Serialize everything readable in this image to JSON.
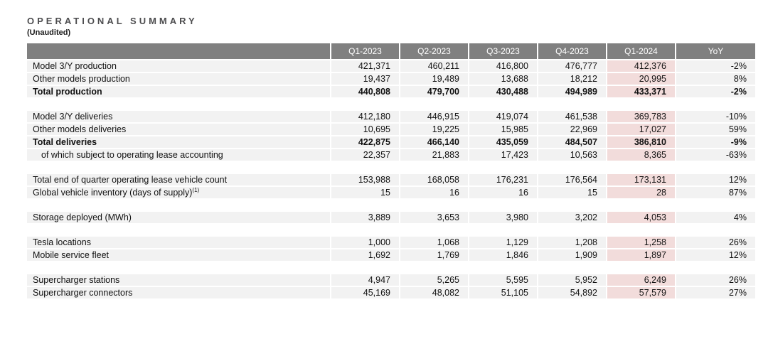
{
  "header": {
    "title": "OPERATIONAL SUMMARY",
    "subtitle": "(Unaudited)"
  },
  "colors": {
    "header_bg": "#808080",
    "header_text": "#ffffff",
    "row_bg": "#f2f2f2",
    "highlight_bg": "#f2dcdb",
    "title_color": "#4d4d4f"
  },
  "table": {
    "columns": [
      "",
      "Q1-2023",
      "Q2-2023",
      "Q3-2023",
      "Q4-2023",
      "Q1-2024",
      "YoY"
    ],
    "highlight_col_index": 5,
    "sections": [
      {
        "rows": [
          {
            "label": "Model 3/Y production",
            "bold": false,
            "indent": false,
            "values": [
              "421,371",
              "460,211",
              "416,800",
              "476,777",
              "412,376",
              "-2%"
            ]
          },
          {
            "label": "Other models production",
            "bold": false,
            "indent": false,
            "values": [
              "19,437",
              "19,489",
              "13,688",
              "18,212",
              "20,995",
              "8%"
            ]
          },
          {
            "label": "Total production",
            "bold": true,
            "indent": false,
            "values": [
              "440,808",
              "479,700",
              "430,488",
              "494,989",
              "433,371",
              "-2%"
            ]
          }
        ]
      },
      {
        "rows": [
          {
            "label": "Model 3/Y deliveries",
            "bold": false,
            "indent": false,
            "values": [
              "412,180",
              "446,915",
              "419,074",
              "461,538",
              "369,783",
              "-10%"
            ]
          },
          {
            "label": "Other models deliveries",
            "bold": false,
            "indent": false,
            "values": [
              "10,695",
              "19,225",
              "15,985",
              "22,969",
              "17,027",
              "59%"
            ]
          },
          {
            "label": "Total deliveries",
            "bold": true,
            "indent": false,
            "values": [
              "422,875",
              "466,140",
              "435,059",
              "484,507",
              "386,810",
              "-9%"
            ]
          },
          {
            "label": "of which subject to operating lease accounting",
            "bold": false,
            "indent": true,
            "values": [
              "22,357",
              "21,883",
              "17,423",
              "10,563",
              "8,365",
              "-63%"
            ]
          }
        ]
      },
      {
        "rows": [
          {
            "label": "Total end of quarter operating lease vehicle count",
            "bold": false,
            "indent": false,
            "values": [
              "153,988",
              "168,058",
              "176,231",
              "176,564",
              "173,131",
              "12%"
            ]
          },
          {
            "label": "Global vehicle inventory (days of supply)",
            "superscript": "(1)",
            "bold": false,
            "indent": false,
            "values": [
              "15",
              "16",
              "16",
              "15",
              "28",
              "87%"
            ]
          }
        ]
      },
      {
        "rows": [
          {
            "label": "Storage deployed (MWh)",
            "bold": false,
            "indent": false,
            "values": [
              "3,889",
              "3,653",
              "3,980",
              "3,202",
              "4,053",
              "4%"
            ]
          }
        ]
      },
      {
        "rows": [
          {
            "label": "Tesla locations",
            "bold": false,
            "indent": false,
            "values": [
              "1,000",
              "1,068",
              "1,129",
              "1,208",
              "1,258",
              "26%"
            ]
          },
          {
            "label": "Mobile service fleet",
            "bold": false,
            "indent": false,
            "values": [
              "1,692",
              "1,769",
              "1,846",
              "1,909",
              "1,897",
              "12%"
            ]
          }
        ]
      },
      {
        "rows": [
          {
            "label": "Supercharger stations",
            "bold": false,
            "indent": false,
            "values": [
              "4,947",
              "5,265",
              "5,595",
              "5,952",
              "6,249",
              "26%"
            ]
          },
          {
            "label": "Supercharger connectors",
            "bold": false,
            "indent": false,
            "values": [
              "45,169",
              "48,082",
              "51,105",
              "54,892",
              "57,579",
              "27%"
            ]
          }
        ]
      }
    ]
  }
}
